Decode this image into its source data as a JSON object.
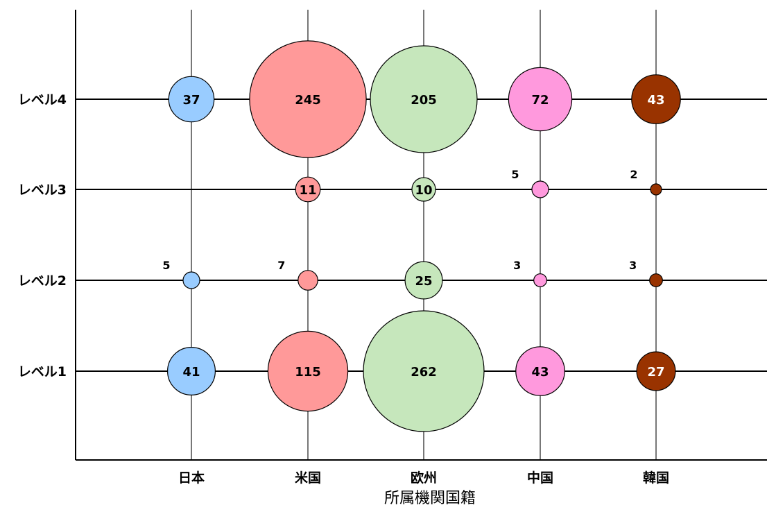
{
  "chart_data": {
    "type": "bubble",
    "xlabel": "所属機関国籍",
    "ylabel": "",
    "categories": [
      "日本",
      "米国",
      "欧州",
      "中国",
      "韓国"
    ],
    "levels": [
      "レベル1",
      "レベル2",
      "レベル3",
      "レベル4"
    ],
    "grid": true,
    "series": [
      {
        "category": "日本",
        "color": "#99ccff",
        "label_color": "#000000",
        "values": {
          "レベル1": 41,
          "レベル2": 5,
          "レベル3": 0,
          "レベル4": 37
        }
      },
      {
        "category": "米国",
        "color": "#ff9999",
        "label_color": "#000000",
        "values": {
          "レベル1": 115,
          "レベル2": 7,
          "レベル3": 11,
          "レベル4": 245
        }
      },
      {
        "category": "欧州",
        "color": "#c6e7bc",
        "label_color": "#000000",
        "values": {
          "レベル1": 262,
          "レベル2": 25,
          "レベル3": 10,
          "レベル4": 205
        }
      },
      {
        "category": "中国",
        "color": "#ff99dd",
        "label_color": "#000000",
        "values": {
          "レベル1": 43,
          "レベル2": 3,
          "レベル3": 5,
          "レベル4": 72
        }
      },
      {
        "category": "韓国",
        "color": "#993300",
        "label_color": "#ffffff",
        "values": {
          "レベル1": 27,
          "レベル2": 3,
          "レベル3": 2,
          "レベル4": 43
        }
      }
    ]
  }
}
